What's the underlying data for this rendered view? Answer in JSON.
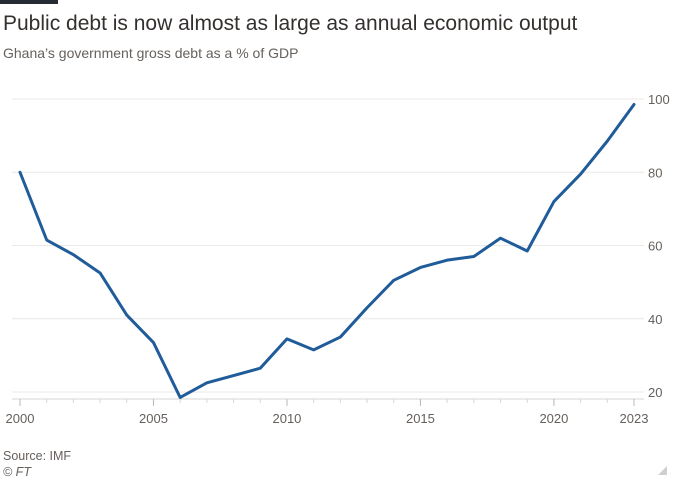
{
  "chart_data": {
    "type": "line",
    "title": "Public debt is now almost as large as annual economic output",
    "subtitle": "Ghana’s government gross debt as a % of GDP",
    "source": "Source: IMF",
    "copyright": "© FT",
    "xlabel": "",
    "ylabel": "",
    "xlim": [
      2000,
      2023
    ],
    "ylim": [
      20,
      100
    ],
    "x_ticks": [
      2000,
      2005,
      2010,
      2015,
      2020,
      2023
    ],
    "y_ticks": [
      20,
      40,
      60,
      80,
      100
    ],
    "grid": true,
    "series": [
      {
        "name": "Government gross debt (% of GDP)",
        "color": "#1f5c99",
        "x": [
          2000,
          2001,
          2002,
          2003,
          2004,
          2005,
          2006,
          2007,
          2008,
          2009,
          2010,
          2011,
          2012,
          2013,
          2014,
          2015,
          2016,
          2017,
          2018,
          2019,
          2020,
          2021,
          2022,
          2023
        ],
        "values": [
          80,
          61.5,
          57.5,
          52.5,
          41,
          33.5,
          18.5,
          22.5,
          24.5,
          26.5,
          34.5,
          31.5,
          35,
          43,
          50.5,
          54,
          56,
          57,
          62,
          58.5,
          72,
          79.5,
          88.5,
          98.5
        ]
      }
    ]
  }
}
